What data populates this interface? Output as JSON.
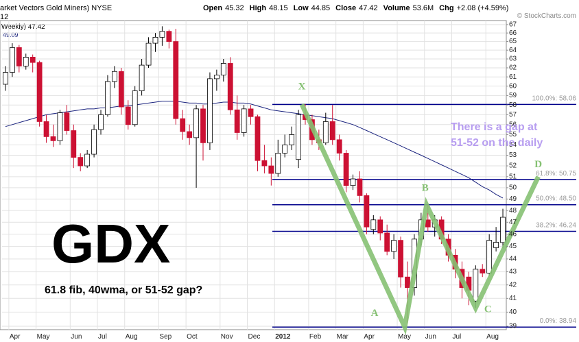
{
  "header": {
    "title": "arket Vectors Gold Miners) NYSE",
    "period": "12",
    "source": "© StockCharts.com",
    "quote": [
      [
        "Open",
        "45.32"
      ],
      [
        "High",
        "48.15"
      ],
      [
        "Low",
        "44.85"
      ],
      [
        "Close",
        "47.42"
      ],
      [
        "Volume",
        "53.6M"
      ],
      [
        "Chg",
        "+2.08 (+4.59%)"
      ]
    ]
  },
  "chart_data": {
    "type": "candlestick",
    "legend": {
      "label": "Weekly) 47.42",
      "ma_value": "49.09"
    },
    "categories": [
      null,
      "Apr",
      null,
      null,
      null,
      "May",
      null,
      null,
      null,
      null,
      "Jun",
      null,
      null,
      null,
      "Jul",
      null,
      null,
      null,
      "Aug",
      null,
      null,
      null,
      null,
      "Sep",
      null,
      null,
      null,
      "Oct",
      null,
      null,
      null,
      null,
      "Nov",
      null,
      null,
      null,
      "Dec",
      null,
      null,
      null,
      "2012",
      null,
      null,
      null,
      null,
      "Feb",
      null,
      null,
      null,
      "Mar",
      null,
      null,
      null,
      "Apr",
      null,
      null,
      null,
      null,
      "May",
      null,
      null,
      null,
      "Jun",
      null,
      null,
      null,
      "Jul",
      null,
      null,
      null,
      null,
      "Aug",
      null,
      null
    ],
    "open": [
      60.2,
      61.5,
      64.3,
      62.2,
      63.2,
      62.6,
      56.3,
      54.8,
      54.4,
      57.2,
      55.4,
      52.8,
      52,
      53.1,
      55.5,
      57,
      60.5,
      61.6,
      57.8,
      56,
      59.5,
      62.3,
      64.8,
      65.5,
      66.2,
      65,
      56.6,
      55.3,
      54.7,
      57.6,
      54.2,
      60.8,
      61.2,
      62.5,
      57.5,
      55.2,
      57.6,
      56.8,
      52.5,
      52,
      51.3,
      53.2,
      54,
      52.6,
      57,
      56.5,
      54.5,
      54.2,
      56.3,
      54.5,
      53.2,
      50.2,
      50.8,
      49.3,
      46.4,
      47.2,
      46.1,
      44.6,
      45.5,
      42.6,
      41.8,
      45.6,
      47.2,
      46.6,
      47.2,
      45.6,
      44.3,
      43.2,
      42.6,
      40.8,
      43.2,
      42.9,
      44.9,
      45.32
    ],
    "high": [
      62.2,
      64.8,
      64.6,
      63.6,
      63.5,
      62.8,
      57,
      56,
      57.5,
      58,
      56,
      53.2,
      53.5,
      56,
      57.5,
      61.2,
      62.2,
      62,
      58.5,
      60,
      63,
      65.5,
      66,
      66.8,
      66.4,
      66.5,
      57.5,
      56,
      58,
      58,
      61.5,
      61.8,
      63,
      63.2,
      59,
      58,
      58,
      57,
      54,
      52.8,
      54.5,
      55,
      55.8,
      57.5,
      58.1,
      57,
      55.5,
      57.2,
      58,
      55,
      53.5,
      51.2,
      51.5,
      49.5,
      47.6,
      47.5,
      46.8,
      46,
      45.8,
      43.8,
      46,
      47.8,
      48.5,
      47.6,
      47.5,
      46,
      44.8,
      43.8,
      43,
      43.5,
      43.6,
      46,
      46.6,
      48.15
    ],
    "low": [
      59.5,
      61,
      61.5,
      61.8,
      61.5,
      55.8,
      54.2,
      53.8,
      54,
      55,
      51.8,
      51.5,
      51.8,
      52.8,
      55,
      56.8,
      59.8,
      57,
      55.5,
      55.8,
      59,
      62,
      63.8,
      64.5,
      64.2,
      56,
      54.5,
      54,
      50,
      52.5,
      53.5,
      59.5,
      60.5,
      57,
      54.5,
      54.8,
      56,
      51.5,
      51.3,
      50.2,
      51,
      52.8,
      53.5,
      51.8,
      56,
      54,
      53.5,
      54,
      54,
      52.5,
      49.6,
      49.8,
      48.7,
      46,
      46,
      45.5,
      44.3,
      44,
      41.8,
      39.2,
      41.2,
      45,
      46.2,
      45.8,
      45.2,
      43.8,
      42.5,
      41,
      40.5,
      40.3,
      42.6,
      42.7,
      44.6,
      44.85
    ],
    "close": [
      61.5,
      64.3,
      62.2,
      63.2,
      62.6,
      56.3,
      54.8,
      54.4,
      57.2,
      55.4,
      52.8,
      52,
      53.1,
      55.5,
      57,
      60.5,
      61.6,
      57.8,
      56,
      59.5,
      62.3,
      64.8,
      65.5,
      66.2,
      65,
      56.6,
      55.3,
      54.7,
      57.6,
      54.2,
      60.8,
      61.2,
      62.5,
      57.5,
      55.2,
      57.6,
      56.8,
      52.5,
      52,
      51.3,
      53.2,
      54,
      55,
      57,
      56.5,
      54.5,
      54.2,
      56.3,
      54.5,
      53.2,
      50.2,
      50.8,
      49.3,
      46.6,
      47.2,
      46.1,
      44.6,
      45.5,
      42.6,
      41.8,
      45.6,
      47.2,
      46.6,
      47.2,
      45.6,
      44.3,
      43.2,
      41.8,
      41.6,
      43.2,
      42.9,
      45.5,
      45.34,
      47.42
    ],
    "up_color": "#ffffff",
    "down_color": "#cc1133",
    "ma": {
      "color": "#1a237e",
      "values": [
        55.8,
        56.0,
        56.2,
        56.4,
        56.6,
        56.8,
        57.0,
        57.1,
        57.2,
        57.3,
        57.4,
        57.5,
        57.6,
        57.6,
        57.7,
        57.7,
        57.8,
        57.9,
        57.9,
        58.0,
        58.1,
        58.2,
        58.3,
        58.4,
        58.4,
        58.4,
        58.3,
        58.2,
        58.2,
        58.1,
        58.1,
        58.2,
        58.3,
        58.3,
        58.2,
        58.2,
        58.1,
        57.9,
        57.7,
        57.5,
        57.4,
        57.3,
        57.2,
        57.1,
        57.0,
        56.9,
        56.8,
        56.7,
        56.6,
        56.4,
        56.2,
        56.0,
        55.7,
        55.4,
        55.1,
        54.8,
        54.5,
        54.2,
        53.9,
        53.6,
        53.3,
        53.0,
        52.7,
        52.4,
        52.1,
        51.8,
        51.5,
        51.2,
        50.9,
        50.5,
        50.1,
        49.8,
        49.4,
        49.09
      ]
    },
    "ylim": [
      38.76,
      67.49
    ],
    "yticks": [
      39,
      40,
      41,
      42,
      43,
      44,
      45,
      46,
      47,
      48,
      49,
      50,
      51,
      52,
      53,
      54,
      55,
      56,
      57,
      58,
      59,
      60,
      61,
      62,
      63,
      64,
      65,
      66,
      67
    ],
    "log_scale": true,
    "grid": true,
    "fib_color": "#00008b",
    "fib_levels": [
      {
        "label": "100.0%: 58.06",
        "value": 58.06
      },
      {
        "label": "61.8%: 50.75",
        "value": 50.75
      },
      {
        "label": "50.0%: 48.50",
        "value": 48.5
      },
      {
        "label": "38.2%: 46.24",
        "value": 46.24
      },
      {
        "label": "0.0%: 38.94",
        "value": 38.94
      }
    ],
    "pattern": {
      "color": "#86c173",
      "points": [
        {
          "label": "X",
          "week": 43.5,
          "price": 58.06
        },
        {
          "label": "A",
          "week": 58.6,
          "price": 38.94
        },
        {
          "label": "B",
          "week": 61.8,
          "price": 48.5
        },
        {
          "label": "C",
          "week": 69,
          "price": 40.3
        },
        {
          "label": "D",
          "week": 78.2,
          "price": 51
        }
      ]
    },
    "annotations": {
      "symbol": "GDX",
      "question": "61.8 fib, 40wma, or 51-52 gap?",
      "note": [
        "There is a gap at",
        "51-52 on the daily"
      ],
      "note_color": "#b79df0"
    }
  }
}
